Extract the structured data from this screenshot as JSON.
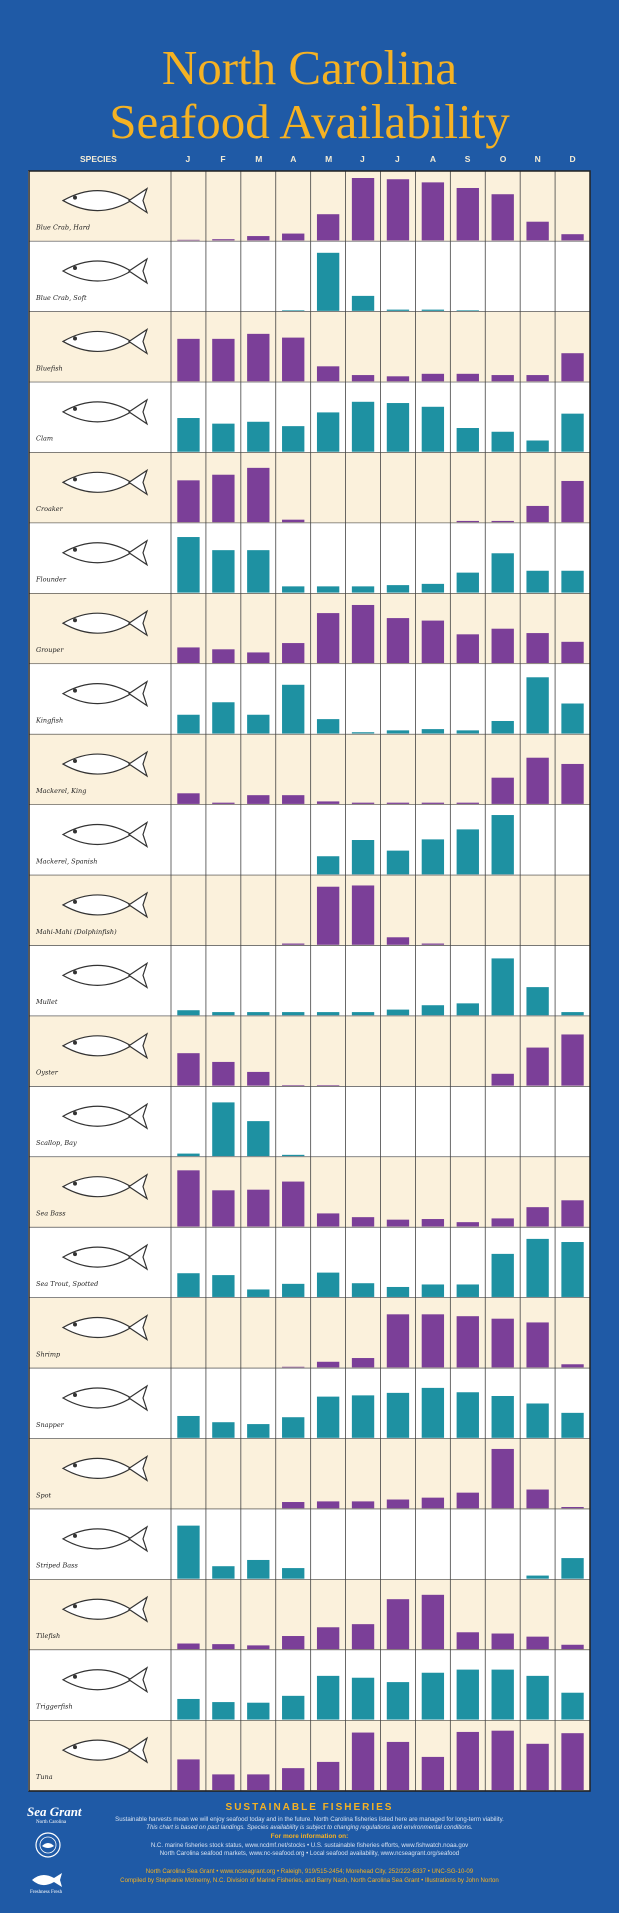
{
  "title": {
    "line1": "North Carolina",
    "line2": "Seafood Availability"
  },
  "chart_data": {
    "type": "bar",
    "categories": [
      "J",
      "F",
      "M",
      "A",
      "M",
      "J",
      "J",
      "A",
      "S",
      "O",
      "N",
      "D"
    ],
    "species_header": "SPECIES",
    "ylim": [
      0,
      100
    ],
    "colors": {
      "purple": "#7b3f98",
      "teal": "#1e91a2",
      "band_cream": "#fbf1dc",
      "band_white": "#ffffff"
    },
    "series": [
      {
        "name": "Blue Crab, Hard",
        "color": "purple",
        "values": [
          1,
          2,
          7,
          11,
          42,
          100,
          98,
          93,
          84,
          74,
          30,
          10
        ]
      },
      {
        "name": "Blue Crab, Soft",
        "color": "teal",
        "values": [
          0,
          0,
          0,
          1,
          93,
          24,
          2,
          2,
          1,
          0,
          0,
          0
        ]
      },
      {
        "name": "Bluefish",
        "color": "purple",
        "values": [
          68,
          68,
          76,
          70,
          24,
          10,
          8,
          12,
          12,
          10,
          10,
          45
        ]
      },
      {
        "name": "Clam",
        "color": "teal",
        "values": [
          54,
          45,
          48,
          41,
          63,
          80,
          78,
          72,
          38,
          32,
          18,
          61
        ]
      },
      {
        "name": "Croaker",
        "color": "purple",
        "values": [
          67,
          76,
          87,
          4,
          0,
          0,
          0,
          0,
          2,
          2,
          26,
          66
        ]
      },
      {
        "name": "Flounder",
        "color": "teal",
        "values": [
          89,
          68,
          68,
          10,
          10,
          10,
          12,
          14,
          32,
          63,
          35,
          35
        ]
      },
      {
        "name": "Grouper",
        "color": "purple",
        "values": [
          25,
          22,
          17,
          32,
          80,
          93,
          72,
          68,
          46,
          55,
          48,
          34
        ]
      },
      {
        "name": "Kingfish",
        "color": "teal",
        "values": [
          30,
          50,
          30,
          78,
          23,
          2,
          5,
          7,
          5,
          20,
          90,
          48
        ]
      },
      {
        "name": "Mackerel, King",
        "color": "purple",
        "values": [
          17,
          2,
          14,
          14,
          4,
          2,
          2,
          2,
          2,
          42,
          74,
          64
        ]
      },
      {
        "name": "Mackerel, Spanish",
        "color": "teal",
        "values": [
          0,
          0,
          0,
          0,
          29,
          55,
          38,
          56,
          72,
          95,
          0,
          0
        ]
      },
      {
        "name": "Mahi-Mahi (Dolphinfish)",
        "color": "purple",
        "values": [
          0,
          0,
          0,
          2,
          93,
          95,
          12,
          2,
          0,
          0,
          0,
          0
        ]
      },
      {
        "name": "Mullet",
        "color": "teal",
        "values": [
          8,
          5,
          5,
          5,
          5,
          5,
          9,
          16,
          19,
          91,
          45,
          5
        ]
      },
      {
        "name": "Oyster",
        "color": "purple",
        "values": [
          52,
          38,
          22,
          1,
          1,
          0,
          0,
          0,
          0,
          19,
          61,
          82
        ]
      },
      {
        "name": "Scallop, Bay",
        "color": "teal",
        "values": [
          4,
          86,
          56,
          2,
          0,
          0,
          0,
          0,
          0,
          0,
          0,
          0
        ]
      },
      {
        "name": "Sea Bass",
        "color": "purple",
        "values": [
          90,
          58,
          59,
          72,
          21,
          15,
          11,
          12,
          7,
          13,
          31,
          42
        ]
      },
      {
        "name": "Sea Trout, Spotted",
        "color": "teal",
        "values": [
          38,
          35,
          12,
          21,
          39,
          22,
          16,
          20,
          20,
          69,
          93,
          88
        ]
      },
      {
        "name": "Shrimp",
        "color": "purple",
        "values": [
          0,
          0,
          0,
          1,
          9,
          15,
          85,
          85,
          82,
          78,
          72,
          5
        ]
      },
      {
        "name": "Snapper",
        "color": "teal",
        "values": [
          35,
          25,
          22,
          33,
          66,
          68,
          72,
          80,
          73,
          67,
          55,
          40
        ]
      },
      {
        "name": "Spot",
        "color": "purple",
        "values": [
          0,
          0,
          0,
          10,
          11,
          11,
          14,
          17,
          25,
          95,
          30,
          2
        ]
      },
      {
        "name": "Striped Bass",
        "color": "teal",
        "values": [
          85,
          20,
          30,
          17,
          0,
          0,
          0,
          0,
          0,
          0,
          5,
          33
        ]
      },
      {
        "name": "Tilefish",
        "color": "purple",
        "values": [
          9,
          8,
          6,
          21,
          35,
          40,
          80,
          87,
          27,
          25,
          20,
          7
        ]
      },
      {
        "name": "Triggerfish",
        "color": "teal",
        "values": [
          33,
          28,
          27,
          38,
          70,
          67,
          60,
          75,
          80,
          80,
          70,
          43
        ]
      },
      {
        "name": "Tuna",
        "color": "purple",
        "values": [
          49,
          25,
          25,
          35,
          45,
          92,
          77,
          53,
          93,
          95,
          74,
          91
        ]
      }
    ]
  },
  "footer": {
    "heading": "SUSTAINABLE FISHERIES",
    "line1": "Sustainable harvests mean we will enjoy seafood today and in the future. North Carolina fisheries listed here are managed for long-term viability.",
    "line2": "This chart is based on past landings. Species availability is subject to changing regulations and environmental conditions.",
    "more_info": "For more information on:",
    "line3": "N.C. marine fisheries stock status, www.ncdmf.net/stocks  •  U.S. sustainable fisheries efforts, www.fishwatch.noaa.gov",
    "line4": "North Carolina seafood markets, www.nc-seafood.org  •  Local seafood availability, www.ncseagrant.org/seafood",
    "line5": "North Carolina Sea Grant  •  www.ncseagrant.org  •  Raleigh, 919/515-2454; Morehead City, 252/222-6337  •  UNC-SG-10-09",
    "line6": "Compiled by Stephanie McInerny, N.C. Division of Marine Fisheries, and Barry Nash, North Carolina Sea Grant  •  Illustrations by John Norton"
  },
  "logos": {
    "sea_grant": "Sea Grant",
    "sea_grant_sub": "North Carolina",
    "fresh": "Freshness Fresh"
  }
}
